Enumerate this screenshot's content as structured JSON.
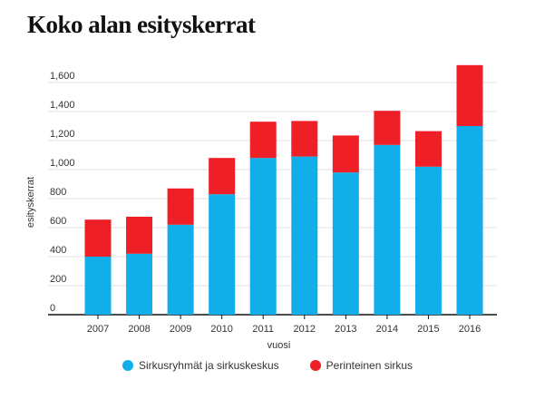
{
  "chart_data": {
    "type": "bar",
    "stacked": true,
    "title": "Koko alan esityskerrat",
    "xlabel": "vuosi",
    "ylabel": "esityskerrat",
    "ylim": [
      0,
      1700
    ],
    "yticks": [
      0,
      200,
      400,
      600,
      800,
      1000,
      1200,
      1400,
      1600
    ],
    "ytick_labels": [
      "0",
      "200",
      "400",
      "600",
      "800",
      "1,000",
      "1,200",
      "1,400",
      "1,600"
    ],
    "grid": true,
    "legend_position": "bottom",
    "categories": [
      "2007",
      "2008",
      "2009",
      "2010",
      "2011",
      "2012",
      "2013",
      "2014",
      "2015",
      "2016"
    ],
    "series": [
      {
        "name": "Sirkusryhmät ja sirkuskeskus",
        "color": "#11aeea",
        "values": [
          400,
          420,
          620,
          830,
          1080,
          1090,
          980,
          1170,
          1020,
          1300
        ]
      },
      {
        "name": "Perinteinen sirkus",
        "color": "#ee1f26",
        "values": [
          255,
          255,
          250,
          250,
          250,
          245,
          255,
          235,
          245,
          420
        ]
      }
    ]
  }
}
